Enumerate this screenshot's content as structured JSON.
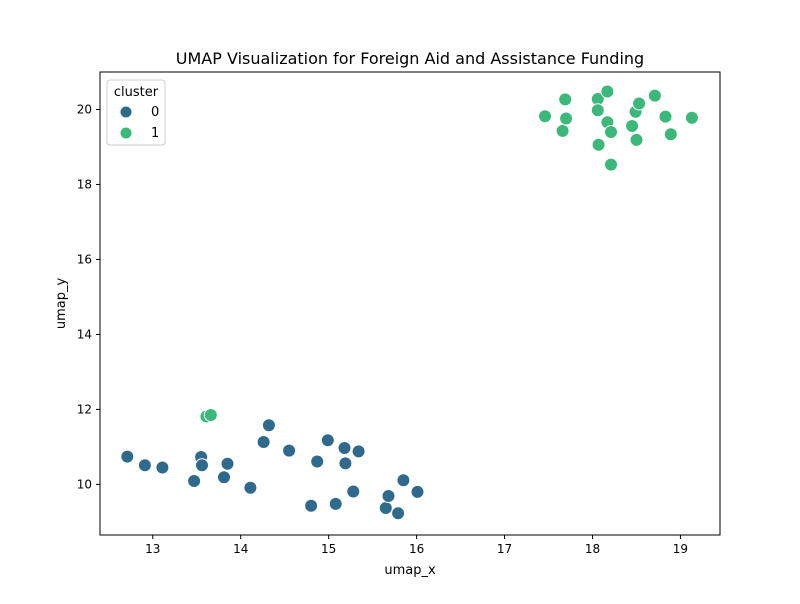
{
  "chart_data": {
    "type": "scatter",
    "title": "UMAP Visualization for Foreign Aid and Assistance Funding",
    "xlabel": "umap_x",
    "ylabel": "umap_y",
    "xlim": [
      12.4,
      19.45
    ],
    "ylim": [
      8.65,
      21.0
    ],
    "xticks": [
      13,
      14,
      15,
      16,
      17,
      18,
      19
    ],
    "yticks": [
      10,
      12,
      14,
      16,
      18,
      20
    ],
    "grid": false,
    "legend": {
      "title": "cluster",
      "placement": "top-left",
      "entries": [
        {
          "label": "0",
          "color": "#2f6a8c"
        },
        {
          "label": "1",
          "color": "#3bb87a"
        }
      ]
    },
    "series": [
      {
        "name": "0",
        "color": "#2f6a8c",
        "points": [
          [
            12.71,
            10.74
          ],
          [
            12.91,
            10.51
          ],
          [
            13.11,
            10.45
          ],
          [
            13.47,
            10.09
          ],
          [
            13.55,
            10.73
          ],
          [
            13.56,
            10.51
          ],
          [
            13.81,
            10.19
          ],
          [
            13.85,
            10.55
          ],
          [
            14.11,
            9.91
          ],
          [
            14.26,
            11.13
          ],
          [
            14.32,
            11.58
          ],
          [
            14.55,
            10.9
          ],
          [
            14.8,
            9.43
          ],
          [
            14.87,
            10.61
          ],
          [
            14.99,
            11.18
          ],
          [
            15.08,
            9.48
          ],
          [
            15.18,
            10.97
          ],
          [
            15.19,
            10.56
          ],
          [
            15.28,
            9.81
          ],
          [
            15.34,
            10.88
          ],
          [
            15.65,
            9.37
          ],
          [
            15.68,
            9.69
          ],
          [
            15.79,
            9.23
          ],
          [
            15.85,
            10.11
          ],
          [
            16.01,
            9.8
          ]
        ]
      },
      {
        "name": "1",
        "color": "#3bb87a",
        "points": [
          [
            13.61,
            11.81
          ],
          [
            13.66,
            11.85
          ],
          [
            17.46,
            19.82
          ],
          [
            17.66,
            19.43
          ],
          [
            17.69,
            20.27
          ],
          [
            17.7,
            19.76
          ],
          [
            18.06,
            20.28
          ],
          [
            18.06,
            19.98
          ],
          [
            18.07,
            19.06
          ],
          [
            18.17,
            20.48
          ],
          [
            18.17,
            19.66
          ],
          [
            18.21,
            19.4
          ],
          [
            18.21,
            18.53
          ],
          [
            18.45,
            19.56
          ],
          [
            18.49,
            19.94
          ],
          [
            18.5,
            19.19
          ],
          [
            18.53,
            20.16
          ],
          [
            18.71,
            20.37
          ],
          [
            18.83,
            19.81
          ],
          [
            18.89,
            19.34
          ],
          [
            19.13,
            19.78
          ]
        ]
      }
    ]
  }
}
